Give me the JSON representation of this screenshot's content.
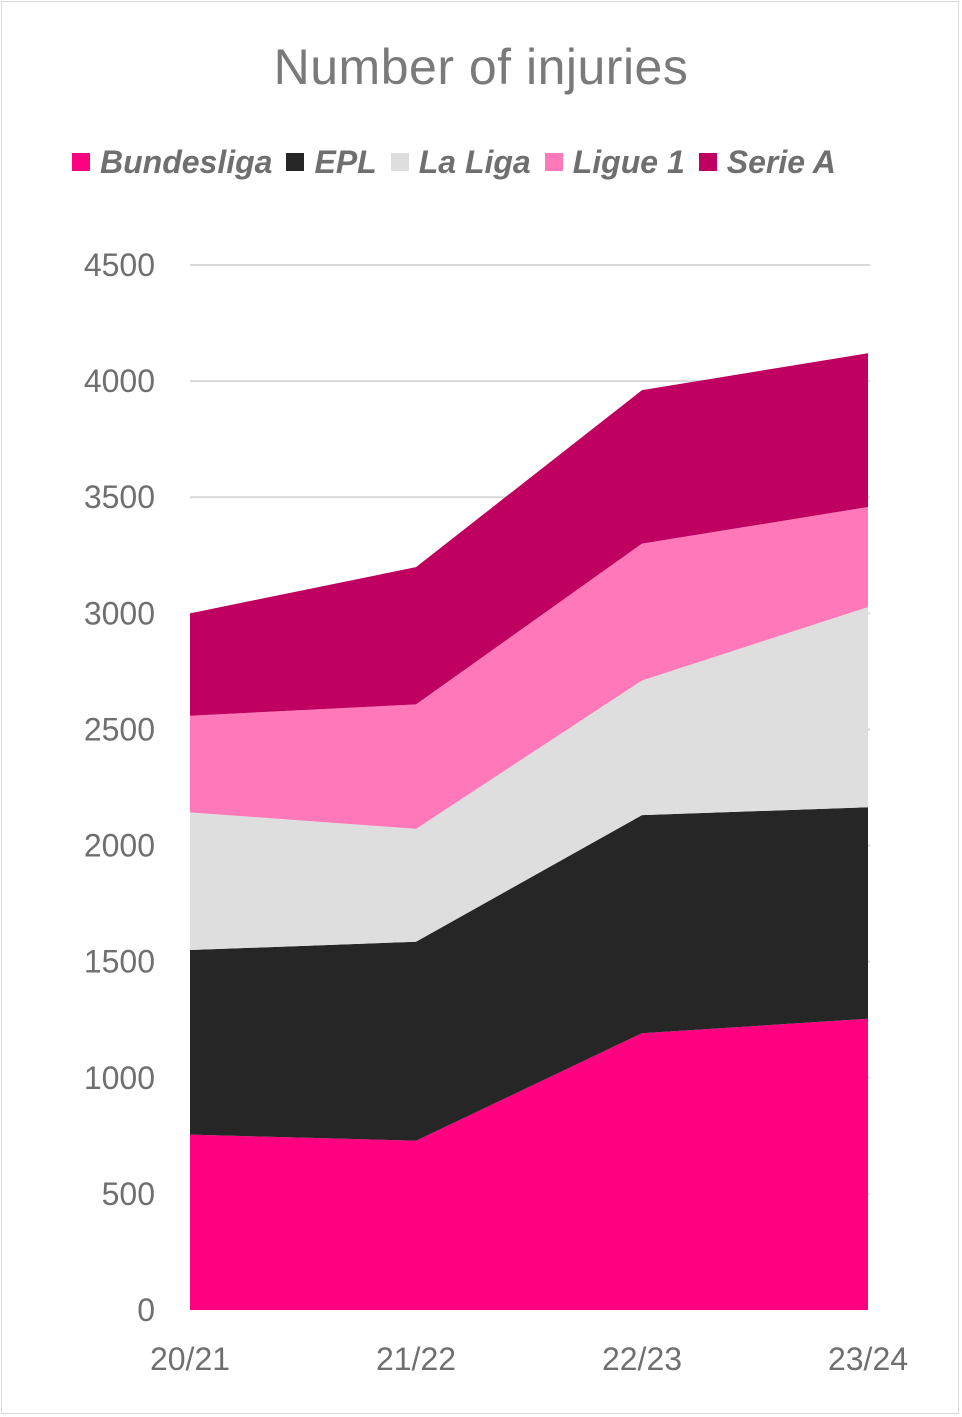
{
  "chart_data": {
    "type": "area",
    "stacked": true,
    "title": "Number of injuries",
    "categories": [
      "20/21",
      "21/22",
      "22/23",
      "23/24"
    ],
    "ylim": [
      0,
      4500
    ],
    "yticks": [
      "0",
      "500",
      "1000",
      "1500",
      "2000",
      "2500",
      "3000",
      "3500",
      "4000",
      "4500"
    ],
    "grid": true,
    "legend_position": "top",
    "series": [
      {
        "name": "Bundesliga",
        "color": "#ff0080",
        "values": [
          755,
          729,
          1192,
          1254
        ]
      },
      {
        "name": "EPL",
        "color": "#262626",
        "values": [
          795,
          857,
          939,
          911
        ]
      },
      {
        "name": "La Liga",
        "color": "#dedede",
        "values": [
          593,
          486,
          580,
          862
        ]
      },
      {
        "name": "Ligue 1",
        "color": "#ff78b9",
        "values": [
          416,
          536,
          589,
          431
        ]
      },
      {
        "name": "Serie A",
        "color": "#c00060",
        "values": [
          441,
          591,
          661,
          662
        ]
      }
    ]
  }
}
